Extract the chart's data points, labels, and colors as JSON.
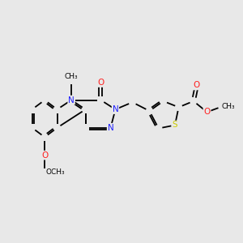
{
  "background_color": "#e8e8e8",
  "figsize": [
    3.0,
    3.0
  ],
  "dpi": 100,
  "atom_colors": {
    "C": "#000000",
    "N": "#2020ff",
    "O": "#ff2020",
    "S": "#cccc00"
  },
  "bond_lw": 1.3,
  "font_size": 7.5,
  "xlim": [
    -3.2,
    5.0
  ],
  "ylim": [
    -2.8,
    2.8
  ]
}
